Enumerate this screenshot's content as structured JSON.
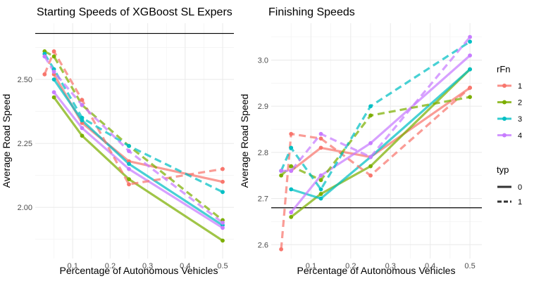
{
  "chart_data": [
    {
      "type": "line",
      "title": "Starting Speeds of XGBoost SL Expers",
      "xlabel": "Percentage of Autonomous Vehicles",
      "ylabel": "Average Road Speed",
      "xlim": [
        0.0,
        0.53
      ],
      "ylim": [
        1.8,
        2.72
      ],
      "xticks": [
        0.1,
        0.2,
        0.3,
        0.4,
        0.5
      ],
      "xtick_labels": [
        "0.1",
        "0.2",
        "0.3",
        "0.4",
        "0.5"
      ],
      "yticks": [
        2.0,
        2.25,
        2.5
      ],
      "ytick_labels": [
        "2.00",
        "2.25",
        "2.50"
      ],
      "hline": 2.68,
      "series": [
        {
          "rFn": "1",
          "typ": "0",
          "x": [
            0.05,
            0.125,
            0.25,
            0.5
          ],
          "y": [
            2.52,
            2.33,
            2.18,
            2.1
          ]
        },
        {
          "rFn": "2",
          "typ": "0",
          "x": [
            0.05,
            0.125,
            0.25,
            0.5
          ],
          "y": [
            2.43,
            2.28,
            2.11,
            1.87
          ]
        },
        {
          "rFn": "3",
          "typ": "0",
          "x": [
            0.05,
            0.125,
            0.25,
            0.5
          ],
          "y": [
            2.5,
            2.34,
            2.17,
            1.93
          ]
        },
        {
          "rFn": "4",
          "typ": "0",
          "x": [
            0.05,
            0.125,
            0.25,
            0.5
          ],
          "y": [
            2.45,
            2.31,
            2.15,
            1.92
          ]
        },
        {
          "rFn": "1",
          "typ": "1",
          "x": [
            0.025,
            0.05,
            0.125,
            0.25,
            0.5
          ],
          "y": [
            2.52,
            2.61,
            2.42,
            2.09,
            2.15
          ]
        },
        {
          "rFn": "2",
          "typ": "1",
          "x": [
            0.025,
            0.05,
            0.125,
            0.25,
            0.5
          ],
          "y": [
            2.61,
            2.59,
            2.4,
            2.24,
            1.95
          ]
        },
        {
          "rFn": "3",
          "typ": "1",
          "x": [
            0.025,
            0.05,
            0.125,
            0.25,
            0.5
          ],
          "y": [
            2.6,
            2.54,
            2.35,
            2.24,
            2.06
          ]
        },
        {
          "rFn": "4",
          "typ": "1",
          "x": [
            0.025,
            0.05,
            0.125,
            0.25,
            0.5
          ],
          "y": [
            2.59,
            2.53,
            2.4,
            2.22,
            1.94
          ]
        }
      ]
    },
    {
      "type": "line",
      "title": "Finishing Speeds",
      "xlabel": "Percentage of Autonomous Vehicles",
      "ylabel": "Average Road Speed",
      "xlim": [
        0.0,
        0.53
      ],
      "ylim": [
        2.57,
        3.08
      ],
      "xticks": [
        0.1,
        0.2,
        0.3,
        0.4,
        0.5
      ],
      "xtick_labels": [
        "0.1",
        "0.2",
        "0.3",
        "0.4",
        "0.5"
      ],
      "yticks": [
        2.6,
        2.7,
        2.8,
        2.9,
        3.0
      ],
      "ytick_labels": [
        "2.6",
        "2.7",
        "2.8",
        "2.9",
        "3.0"
      ],
      "hline": 2.68,
      "series": [
        {
          "rFn": "1",
          "typ": "0",
          "x": [
            0.05,
            0.125,
            0.25,
            0.5
          ],
          "y": [
            2.76,
            2.81,
            2.79,
            2.94
          ]
        },
        {
          "rFn": "2",
          "typ": "0",
          "x": [
            0.05,
            0.125,
            0.25,
            0.5
          ],
          "y": [
            2.66,
            2.71,
            2.77,
            2.98
          ]
        },
        {
          "rFn": "3",
          "typ": "0",
          "x": [
            0.05,
            0.125,
            0.25,
            0.5
          ],
          "y": [
            2.72,
            2.7,
            2.79,
            2.98
          ]
        },
        {
          "rFn": "4",
          "typ": "0",
          "x": [
            0.05,
            0.125,
            0.25,
            0.5
          ],
          "y": [
            2.67,
            2.75,
            2.82,
            3.01
          ]
        },
        {
          "rFn": "1",
          "typ": "1",
          "x": [
            0.025,
            0.05,
            0.125,
            0.25,
            0.5
          ],
          "y": [
            2.59,
            2.84,
            2.83,
            2.75,
            2.94
          ]
        },
        {
          "rFn": "2",
          "typ": "1",
          "x": [
            0.025,
            0.05,
            0.125,
            0.25,
            0.5
          ],
          "y": [
            2.75,
            2.77,
            2.74,
            2.88,
            2.92
          ]
        },
        {
          "rFn": "3",
          "typ": "1",
          "x": [
            0.025,
            0.05,
            0.125,
            0.25,
            0.5
          ],
          "y": [
            2.76,
            2.81,
            2.72,
            2.9,
            3.04
          ]
        },
        {
          "rFn": "4",
          "typ": "1",
          "x": [
            0.025,
            0.05,
            0.125,
            0.25,
            0.5
          ],
          "y": [
            2.76,
            2.76,
            2.84,
            2.79,
            3.05
          ]
        }
      ]
    }
  ],
  "legend": {
    "placement": "right",
    "color_title": "rFn",
    "color_items": [
      {
        "label": "1",
        "color": "#F8766D"
      },
      {
        "label": "2",
        "color": "#7CAE00"
      },
      {
        "label": "3",
        "color": "#00BFC4"
      },
      {
        "label": "4",
        "color": "#C77CFF"
      }
    ],
    "linetype_title": "typ",
    "linetype_items": [
      {
        "label": "0",
        "dash": "solid"
      },
      {
        "label": "1",
        "dash": "dashed"
      }
    ]
  }
}
